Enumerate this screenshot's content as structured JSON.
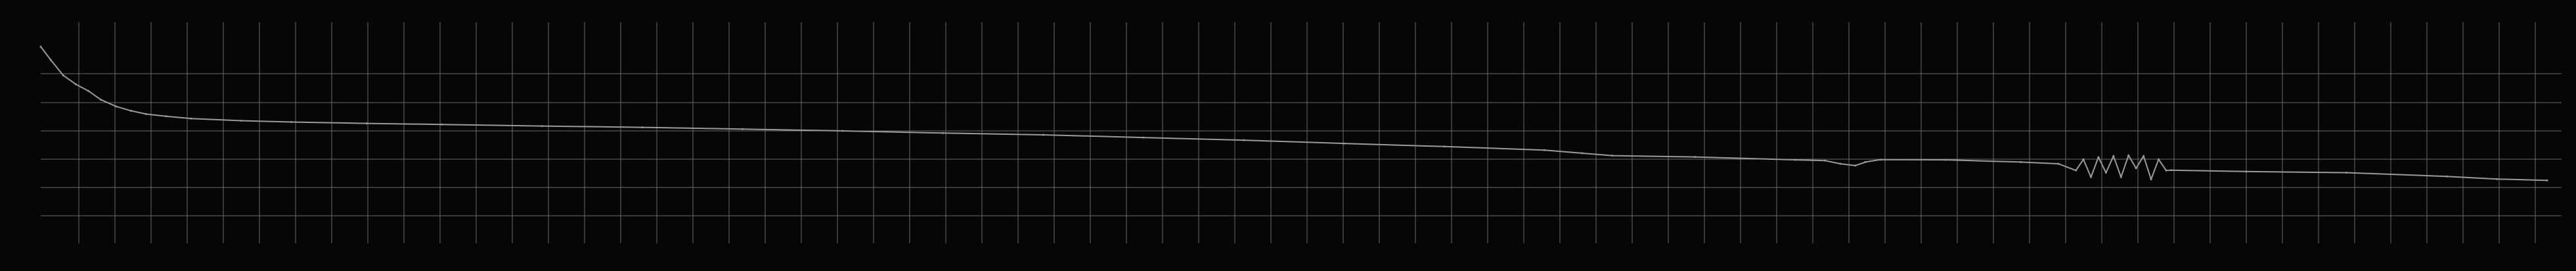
{
  "chart_data": {
    "type": "line",
    "title": "",
    "xlabel": "",
    "ylabel": "",
    "x_tick_labels": [],
    "y_tick_labels": [],
    "grid": true,
    "legend": "none",
    "colors": {
      "background": "#060606",
      "grid": "#6b6b6b",
      "line": "#9a9a9a"
    },
    "xlim": [
      0,
      1
    ],
    "ylim": [
      0,
      1
    ],
    "series": [
      {
        "values": [
          [
            0.0,
            0.89
          ],
          [
            0.004,
            0.83
          ],
          [
            0.009,
            0.76
          ],
          [
            0.014,
            0.72
          ],
          [
            0.019,
            0.69
          ],
          [
            0.024,
            0.65
          ],
          [
            0.03,
            0.62
          ],
          [
            0.036,
            0.6
          ],
          [
            0.042,
            0.585
          ],
          [
            0.05,
            0.575
          ],
          [
            0.06,
            0.565
          ],
          [
            0.08,
            0.555
          ],
          [
            0.1,
            0.549
          ],
          [
            0.13,
            0.543
          ],
          [
            0.16,
            0.538
          ],
          [
            0.2,
            0.531
          ],
          [
            0.24,
            0.525
          ],
          [
            0.28,
            0.517
          ],
          [
            0.32,
            0.509
          ],
          [
            0.36,
            0.499
          ],
          [
            0.4,
            0.491
          ],
          [
            0.44,
            0.479
          ],
          [
            0.48,
            0.467
          ],
          [
            0.52,
            0.452
          ],
          [
            0.56,
            0.438
          ],
          [
            0.6,
            0.422
          ],
          [
            0.615,
            0.408
          ],
          [
            0.627,
            0.397
          ],
          [
            0.66,
            0.391
          ],
          [
            0.7,
            0.378
          ],
          [
            0.712,
            0.374
          ],
          [
            0.718,
            0.36
          ],
          [
            0.724,
            0.352
          ],
          [
            0.728,
            0.368
          ],
          [
            0.734,
            0.379
          ],
          [
            0.76,
            0.378
          ],
          [
            0.79,
            0.368
          ],
          [
            0.805,
            0.36
          ],
          [
            0.812,
            0.33
          ],
          [
            0.815,
            0.38
          ],
          [
            0.818,
            0.3
          ],
          [
            0.821,
            0.39
          ],
          [
            0.824,
            0.32
          ],
          [
            0.827,
            0.395
          ],
          [
            0.83,
            0.3
          ],
          [
            0.833,
            0.398
          ],
          [
            0.836,
            0.34
          ],
          [
            0.839,
            0.395
          ],
          [
            0.842,
            0.29
          ],
          [
            0.845,
            0.38
          ],
          [
            0.848,
            0.33
          ],
          [
            0.85,
            0.331
          ],
          [
            0.88,
            0.325
          ],
          [
            0.92,
            0.32
          ],
          [
            0.96,
            0.303
          ],
          [
            0.98,
            0.291
          ],
          [
            1.0,
            0.285
          ]
        ]
      }
    ]
  }
}
